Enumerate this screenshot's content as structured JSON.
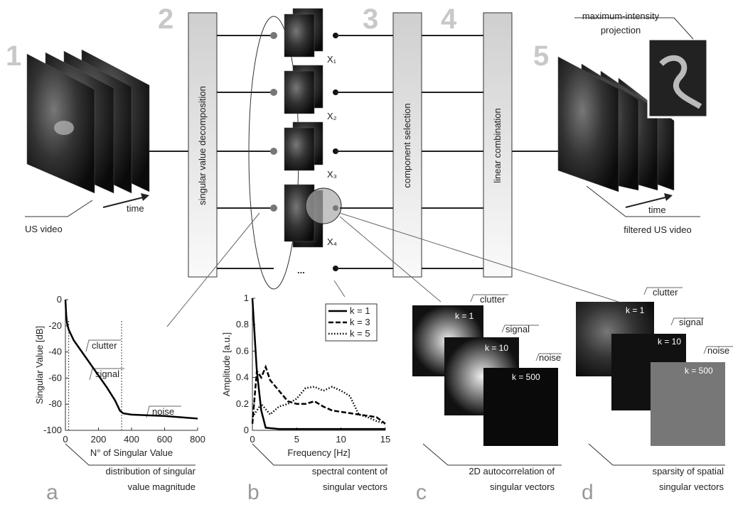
{
  "diagram": {
    "steps": [
      "1",
      "2",
      "3",
      "4",
      "5"
    ],
    "input": {
      "time": "time",
      "label": "US video"
    },
    "svd": "singular value decomposition",
    "components": [
      "X₁",
      "X₂",
      "X₃",
      "X₄"
    ],
    "ellipsis": "...",
    "selection": "component selection",
    "combination": "linear combination",
    "mip": [
      "maximum-intensity",
      "projection"
    ],
    "output": {
      "time": "time",
      "label": "filtered US video"
    },
    "panel_a": {
      "letter": "a",
      "caption": [
        "distribution of singular",
        "value magnitude"
      ]
    },
    "panel_b": {
      "letter": "b",
      "caption": [
        "spectral content of",
        "singular vectors"
      ]
    },
    "panel_c": {
      "letter": "c",
      "caption": [
        "2D autocorrelation of",
        "singular vectors"
      ],
      "tags": [
        "clutter",
        "signal",
        "noise"
      ],
      "k": [
        "k = 1",
        "k = 10",
        "k = 500"
      ]
    },
    "panel_d": {
      "letter": "d",
      "caption": [
        "sparsity of spatial",
        "singular vectors"
      ],
      "tags": [
        "clutter",
        "signal",
        "noise"
      ],
      "k": [
        "k = 1",
        "k = 10",
        "k = 500"
      ]
    }
  },
  "chart_data": [
    {
      "type": "line",
      "x_label": "N° of Singular Value",
      "y_label": "Singular Value [dB]",
      "xlim": [
        0,
        800
      ],
      "ylim": [
        -100,
        0
      ],
      "xticks": [
        0,
        200,
        400,
        600,
        800
      ],
      "yticks": [
        0,
        -20,
        -40,
        -60,
        -80,
        -100
      ],
      "vlines": [
        20,
        340
      ],
      "annotations": [
        "clutter",
        "signal",
        "noise"
      ],
      "series": [
        {
          "color": "#000000",
          "dash": "none",
          "x": [
            0,
            5,
            10,
            20,
            50,
            100,
            150,
            200,
            250,
            300,
            330,
            350,
            400,
            500,
            600,
            700,
            800
          ],
          "values": [
            0,
            -12,
            -18,
            -23,
            -31,
            -40,
            -49,
            -58,
            -67,
            -77,
            -85,
            -87,
            -88,
            -88.5,
            -89,
            -90,
            -91
          ]
        }
      ]
    },
    {
      "type": "line",
      "x_label": "Frequency [Hz]",
      "y_label": "Amplitude [a.u.]",
      "xlim": [
        0,
        15
      ],
      "ylim": [
        0,
        1
      ],
      "xticks": [
        0,
        5,
        10,
        15
      ],
      "yticks": [
        0,
        0.2,
        0.4,
        0.6,
        0.8,
        1
      ],
      "series": [
        {
          "name": "k = 1",
          "color": "#000000",
          "dash": "none",
          "x": [
            0,
            0.5,
            1,
            1.5,
            3,
            6,
            9,
            12,
            15
          ],
          "values": [
            1,
            0.45,
            0.15,
            0.02,
            0.01,
            0.01,
            0.01,
            0.01,
            0.01
          ]
        },
        {
          "name": "k = 3",
          "color": "#000000",
          "dash": "7 3",
          "x": [
            0,
            0.5,
            1,
            1.5,
            2,
            3,
            4,
            5,
            6,
            7,
            8,
            9,
            10,
            12,
            14,
            15
          ],
          "values": [
            0.05,
            0.45,
            0.4,
            0.48,
            0.38,
            0.3,
            0.22,
            0.2,
            0.2,
            0.22,
            0.18,
            0.15,
            0.14,
            0.12,
            0.1,
            0.05
          ]
        },
        {
          "name": "k = 5",
          "color": "#000000",
          "dash": "1.5 2.5",
          "x": [
            0,
            1,
            2,
            3,
            4,
            5,
            6,
            7,
            8,
            9,
            10,
            11,
            12,
            13,
            14,
            15
          ],
          "values": [
            0.1,
            0.2,
            0.12,
            0.18,
            0.2,
            0.24,
            0.32,
            0.33,
            0.3,
            0.33,
            0.3,
            0.26,
            0.12,
            0.1,
            0.07,
            0.05
          ]
        }
      ]
    }
  ]
}
